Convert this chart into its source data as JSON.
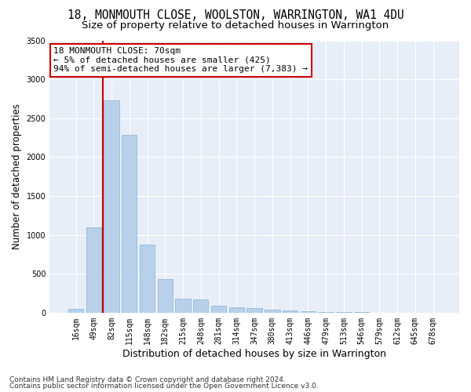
{
  "title_line1": "18, MONMOUTH CLOSE, WOOLSTON, WARRINGTON, WA1 4DU",
  "title_line2": "Size of property relative to detached houses in Warrington",
  "xlabel": "Distribution of detached houses by size in Warrington",
  "ylabel": "Number of detached properties",
  "footnote1": "Contains HM Land Registry data © Crown copyright and database right 2024.",
  "footnote2": "Contains public sector information licensed under the Open Government Licence v3.0.",
  "bar_labels": [
    "16sqm",
    "49sqm",
    "82sqm",
    "115sqm",
    "148sqm",
    "182sqm",
    "215sqm",
    "248sqm",
    "281sqm",
    "314sqm",
    "347sqm",
    "380sqm",
    "413sqm",
    "446sqm",
    "479sqm",
    "513sqm",
    "546sqm",
    "579sqm",
    "612sqm",
    "645sqm",
    "678sqm"
  ],
  "bar_values": [
    50,
    1100,
    2730,
    2290,
    870,
    430,
    175,
    165,
    90,
    70,
    55,
    40,
    25,
    20,
    12,
    8,
    5,
    3,
    2,
    1,
    1
  ],
  "bar_color": "#b8d0ea",
  "bar_edge_color": "#8ab0d0",
  "vline_x": 1.5,
  "vline_color": "#cc0000",
  "ylim": [
    0,
    3500
  ],
  "yticks": [
    0,
    500,
    1000,
    1500,
    2000,
    2500,
    3000,
    3500
  ],
  "annotation_text": "18 MONMOUTH CLOSE: 70sqm\n← 5% of detached houses are smaller (425)\n94% of semi-detached houses are larger (7,383) →",
  "annotation_box_color": "#ffffff",
  "annotation_box_edge_color": "#cc0000",
  "bg_color": "#e8eef8",
  "grid_color": "#ffffff",
  "title_fontsize": 10.5,
  "subtitle_fontsize": 9.5,
  "annot_fontsize": 8,
  "tick_fontsize": 7,
  "ylabel_fontsize": 8.5,
  "xlabel_fontsize": 9,
  "footnote_fontsize": 6.5
}
